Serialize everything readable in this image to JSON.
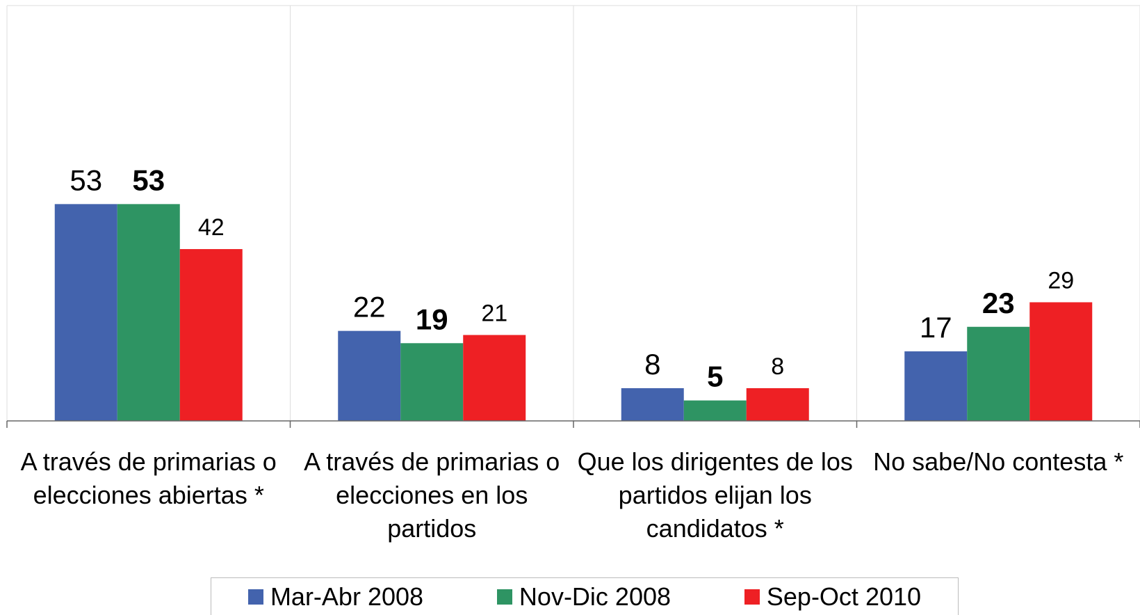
{
  "chart_data": {
    "type": "bar",
    "categories": [
      "A través de primarias o elecciones abiertas *",
      "A través de primarias o elecciones en los partidos",
      "Que los dirigentes de los partidos elijan los candidatos *",
      "No sabe/No contesta *"
    ],
    "series": [
      {
        "name": "Mar-Abr 2008",
        "color": "#4363ad",
        "values": [
          53,
          22,
          8,
          17
        ]
      },
      {
        "name": "Nov-Dic 2008",
        "color": "#2e9463",
        "values": [
          53,
          19,
          5,
          23
        ]
      },
      {
        "name": "Sep-Oct 2010",
        "color": "#ee2024",
        "values": [
          42,
          21,
          8,
          29
        ]
      }
    ],
    "ylim": [
      0,
      100
    ]
  }
}
